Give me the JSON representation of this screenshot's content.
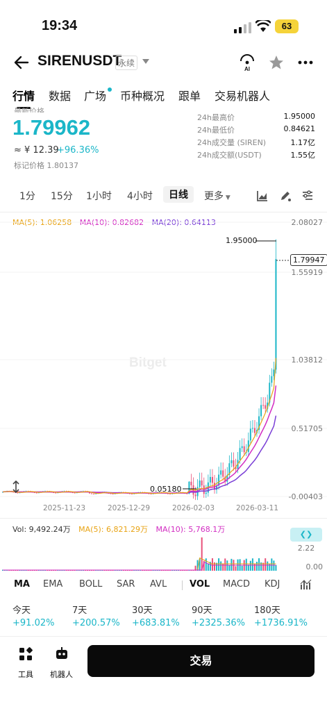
{
  "status": {
    "time": "19:34",
    "battery": "63"
  },
  "header": {
    "pair": "SIRENUSDT",
    "badge": "永续"
  },
  "nav": {
    "tabs": [
      "行情",
      "数据",
      "广场",
      "币种概况",
      "跟单",
      "交易机器人"
    ]
  },
  "price": {
    "label": "最新价格",
    "last": "1.79962",
    "cny": "≈ ¥ 12.39",
    "change": "+96.36%",
    "mark": "标记价格 1.80137"
  },
  "stats": [
    {
      "label": "24h最高价",
      "value": "1.95000"
    },
    {
      "label": "24h最低价",
      "value": "0.84621"
    },
    {
      "label": "24h成交量 (SIREN)",
      "value": "1.17亿"
    },
    {
      "label": "24h成交额(USDT)",
      "value": "1.55亿"
    }
  ],
  "intervals": {
    "items": [
      "1分",
      "15分",
      "1小时",
      "4小时",
      "日线"
    ],
    "more": "更多"
  },
  "chart": {
    "legend": {
      "ma5": "MA(5): 1.06258",
      "ma10": "MA(10): 0.82682",
      "ma20": "MA(20): 0.64113"
    },
    "axis": [
      "2.08027",
      "1.55919",
      "1.03812",
      "0.51705",
      "-0.00403"
    ],
    "x_labels": [
      "2025-11-23",
      "2025-12-29",
      "2026-02-03",
      "2026-03-11"
    ],
    "watermark": "Bitget",
    "high": "1.95000",
    "low": "0.05180",
    "current": "1.79947"
  },
  "volume": {
    "legend": {
      "vol": "Vol: 9,492.24万",
      "ma5": "MA(5): 6,821.29万",
      "ma10": "MA(10): 5,768.1万"
    },
    "axis_top": "2.22",
    "axis_bottom": "0.00"
  },
  "indicators": [
    "MA",
    "EMA",
    "BOLL",
    "SAR",
    "AVL",
    "VOL",
    "MACD",
    "KDJ"
  ],
  "performance": [
    {
      "label": "今天",
      "value": "+91.02%"
    },
    {
      "label": "7天",
      "value": "+200.57%"
    },
    {
      "label": "30天",
      "value": "+683.81%"
    },
    {
      "label": "90天",
      "value": "+2325.36%"
    },
    {
      "label": "180天",
      "value": "+1736.91%"
    }
  ],
  "bottom": {
    "tools": "工具",
    "robot": "机器人",
    "trade": "交易"
  },
  "colors": {
    "accent": "#1bb6c8",
    "ma5": "#e8a313",
    "ma10": "#d22cc2",
    "ma20": "#7a3fd6",
    "down": "#e8517a"
  }
}
